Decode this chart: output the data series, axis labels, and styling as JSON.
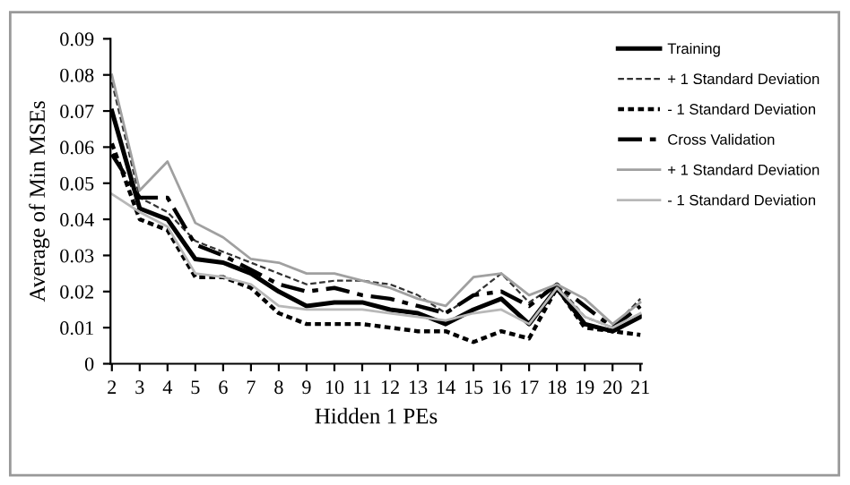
{
  "chart_data": {
    "type": "line",
    "xlabel": "Hidden 1 PEs",
    "ylabel": "Average of Min MSEs",
    "categories": [
      "2",
      "3",
      "4",
      "5",
      "6",
      "7",
      "8",
      "9",
      "10",
      "11",
      "12",
      "13",
      "14",
      "15",
      "16",
      "17",
      "18",
      "19",
      "20",
      "21"
    ],
    "series": [
      {
        "name": "Training",
        "color": "#000000",
        "line_style": "solid",
        "values": [
          0.07,
          0.043,
          0.04,
          0.029,
          0.028,
          0.025,
          0.02,
          0.016,
          0.017,
          0.017,
          0.015,
          0.014,
          0.011,
          0.015,
          0.018,
          0.011,
          0.021,
          0.011,
          0.009,
          0.013
        ]
      },
      {
        "name": "+ 1 Standard Deviation",
        "color": "#333333",
        "line_style": "dashed",
        "values": [
          0.078,
          0.046,
          0.042,
          0.034,
          0.031,
          0.028,
          0.025,
          0.022,
          0.023,
          0.023,
          0.022,
          0.019,
          0.014,
          0.019,
          0.025,
          0.017,
          0.022,
          0.013,
          0.01,
          0.018
        ]
      },
      {
        "name": "- 1 Standard Deviation",
        "color": "#000000",
        "line_style": "dotted",
        "values": [
          0.061,
          0.04,
          0.037,
          0.024,
          0.024,
          0.021,
          0.014,
          0.011,
          0.011,
          0.011,
          0.01,
          0.009,
          0.009,
          0.006,
          0.009,
          0.007,
          0.021,
          0.01,
          0.009,
          0.008
        ]
      },
      {
        "name": "Cross Validation",
        "color": "#000000",
        "line_style": "dashdot",
        "values": [
          0.058,
          0.046,
          0.046,
          0.033,
          0.03,
          0.026,
          0.022,
          0.02,
          0.021,
          0.019,
          0.018,
          0.016,
          0.014,
          0.019,
          0.02,
          0.016,
          0.022,
          0.016,
          0.01,
          0.016
        ]
      },
      {
        "name": "+ 1 Standard Deviation",
        "color": "#a0a0a0",
        "line_style": "solid",
        "values": [
          0.08,
          0.048,
          0.056,
          0.039,
          0.035,
          0.029,
          0.028,
          0.025,
          0.025,
          0.023,
          0.021,
          0.018,
          0.016,
          0.024,
          0.025,
          0.019,
          0.022,
          0.018,
          0.011,
          0.017
        ]
      },
      {
        "name": "- 1 Standard Deviation",
        "color": "#b8b8b8",
        "line_style": "solid",
        "values": [
          0.047,
          0.042,
          0.038,
          0.025,
          0.024,
          0.022,
          0.016,
          0.015,
          0.015,
          0.015,
          0.014,
          0.013,
          0.012,
          0.014,
          0.015,
          0.011,
          0.021,
          0.013,
          0.01,
          0.014
        ]
      }
    ],
    "ylim": [
      0,
      0.09
    ],
    "yticks": [
      0,
      0.01,
      0.02,
      0.03,
      0.04,
      0.05,
      0.06,
      0.07,
      0.08,
      0.09
    ],
    "grid": false,
    "legend": "right",
    "marker": "none"
  }
}
